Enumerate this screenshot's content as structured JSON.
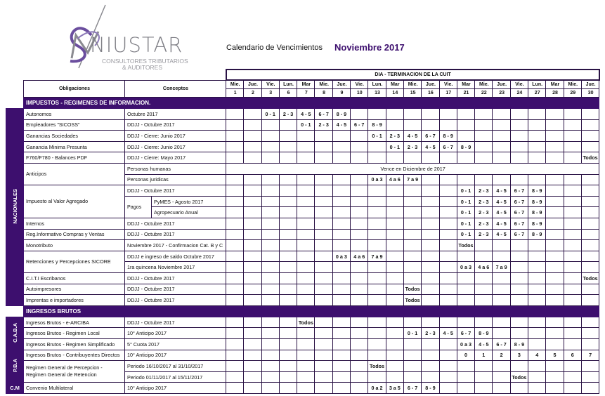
{
  "header": {
    "logo_text": "NIUSTAR",
    "logo_sub1": "CONSULTORES TRIBUTARIOS",
    "logo_sub2": "& AUDITORES",
    "calendar_label": "Calendario de Vencimientos",
    "month": "Noviembre 2017",
    "accent_color": "#3d0f6e"
  },
  "table": {
    "col_obligaciones": "Obligaciones",
    "col_conceptos": "Conceptos",
    "dia_header": "DIA - TERMINACION DE LA CUIT",
    "days": [
      {
        "dow": "Mie.",
        "num": "1"
      },
      {
        "dow": "Jue.",
        "num": "2"
      },
      {
        "dow": "Vie.",
        "num": "3"
      },
      {
        "dow": "Lun.",
        "num": "6"
      },
      {
        "dow": "Mar",
        "num": "7"
      },
      {
        "dow": "Mie.",
        "num": "8"
      },
      {
        "dow": "Jue.",
        "num": "9"
      },
      {
        "dow": "Vie.",
        "num": "10"
      },
      {
        "dow": "Lun.",
        "num": "13"
      },
      {
        "dow": "Mar",
        "num": "14"
      },
      {
        "dow": "Mie.",
        "num": "15"
      },
      {
        "dow": "Jue.",
        "num": "16"
      },
      {
        "dow": "Vie.",
        "num": "17"
      },
      {
        "dow": "Mar",
        "num": "21"
      },
      {
        "dow": "Mie.",
        "num": "22"
      },
      {
        "dow": "Jue.",
        "num": "23"
      },
      {
        "dow": "Vie.",
        "num": "24"
      },
      {
        "dow": "Lun.",
        "num": "27"
      },
      {
        "dow": "Mar",
        "num": "28"
      },
      {
        "dow": "Mie.",
        "num": "29"
      },
      {
        "dow": "Jue.",
        "num": "30"
      }
    ],
    "sections": [
      {
        "title": "IMPUESTOS - REGIMENES DE INFORMACION.",
        "groups": [
          {
            "side": "NACIONALES",
            "items": [
              {
                "obligacion": "Autonomos",
                "rows": [
                  {
                    "concepto": "Octubre 2017",
                    "cells": {
                      "3": "0 - 1",
                      "6": "2 - 3",
                      "7": "4 - 5",
                      "8": "6 - 7",
                      "9": "8 - 9"
                    }
                  }
                ]
              },
              {
                "obligacion": "Empleadores \"SICOSS\"",
                "rows": [
                  {
                    "concepto": "DDJJ - Octubre 2017",
                    "cells": {
                      "7": "0 - 1",
                      "8": "2 - 3",
                      "9": "4 - 5",
                      "10": "6 - 7",
                      "13": "8 - 9"
                    }
                  }
                ]
              },
              {
                "obligacion": "Ganancias Sociedades",
                "rows": [
                  {
                    "concepto": "DDJJ - Cierre: Junio 2017",
                    "cells": {
                      "13": "0 - 1",
                      "14": "2 - 3",
                      "15": "4 - 5",
                      "16": "6 - 7",
                      "17": "8 - 9"
                    }
                  }
                ]
              },
              {
                "obligacion": "Ganancia Minima Presunta",
                "rows": [
                  {
                    "concepto": "DDJJ - Cierre: Junio 2017",
                    "cells": {
                      "14": "0 - 1",
                      "15": "2 - 3",
                      "16": "4 - 5",
                      "17": "6 - 7",
                      "21": "8 - 9"
                    }
                  }
                ]
              },
              {
                "obligacion": "F760/F780 - Balances PDF",
                "rows": [
                  {
                    "concepto": "DDJJ - Cierre: Mayo 2017",
                    "cells": {
                      "30": "Todos"
                    }
                  }
                ]
              },
              {
                "obligacion": "Anticipos",
                "rows": [
                  {
                    "concepto": "Personas humanas",
                    "note": "Vence en Diciembre de 2017"
                  },
                  {
                    "concepto": "Personas juridicas",
                    "cells": {
                      "13": "0 a 3",
                      "14": "4 a 6",
                      "15": "7 a 9"
                    }
                  }
                ]
              },
              {
                "obligacion": "Impuesto al Valor Agregado",
                "sublabel": "Pagos",
                "rows": [
                  {
                    "concepto": "DDJJ - Octubre 2017",
                    "cells": {
                      "21": "0 - 1",
                      "22": "2 - 3",
                      "23": "4 - 5",
                      "24": "6 - 7",
                      "27": "8 - 9"
                    }
                  },
                  {
                    "concepto": "PyMES - Agosto 2017",
                    "sub": true,
                    "cells": {
                      "21": "0 - 1",
                      "22": "2 - 3",
                      "23": "4 - 5",
                      "24": "6 - 7",
                      "27": "8 - 9"
                    }
                  },
                  {
                    "concepto": "Agropecuario Anual",
                    "sub": true,
                    "cells": {
                      "21": "0 - 1",
                      "22": "2 - 3",
                      "23": "4 - 5",
                      "24": "6 - 7",
                      "27": "8 - 9"
                    }
                  }
                ]
              },
              {
                "obligacion": "Internos",
                "rows": [
                  {
                    "concepto": "DDJJ - Octubre 2017",
                    "cells": {
                      "21": "0 - 1",
                      "22": "2 - 3",
                      "23": "4 - 5",
                      "24": "6 - 7",
                      "27": "8 - 9"
                    }
                  }
                ]
              },
              {
                "obligacion": "Reg.Informativo Compras y Ventas",
                "rows": [
                  {
                    "concepto": "DDJJ - Octubre 2017",
                    "cells": {
                      "21": "0 - 1",
                      "22": "2 - 3",
                      "23": "4 - 5",
                      "24": "6 - 7",
                      "27": "8 - 9"
                    }
                  }
                ]
              },
              {
                "obligacion": "Monotributo",
                "rows": [
                  {
                    "concepto": "Noviembre 2017 - Confirmacion Cat. B y C",
                    "cells": {
                      "21": "Todos"
                    }
                  }
                ]
              },
              {
                "obligacion": "Retenciones y Percepciones      SICORE",
                "rows": [
                  {
                    "concepto": "DDJJ e ingreso de saldo Octubre 2017",
                    "cells": {
                      "9": "0 a 3",
                      "10": "4 a 6",
                      "13": "7 a 9"
                    }
                  },
                  {
                    "concepto": "1ra quincena Noviembre 2017",
                    "cells": {
                      "21": "0 a 3",
                      "22": "4 a 6",
                      "23": "7 a 9"
                    }
                  }
                ]
              },
              {
                "obligacion": "C.I.T.I Escribanos",
                "rows": [
                  {
                    "concepto": "DDJJ - Octubre 2017",
                    "cells": {
                      "30": "Todos"
                    }
                  }
                ]
              },
              {
                "obligacion": "Autoimpresores",
                "rows": [
                  {
                    "concepto": "DDJJ - Octubre 2017",
                    "cells": {
                      "15": "Todos"
                    }
                  }
                ]
              },
              {
                "obligacion": "Imprentas e importadores",
                "rows": [
                  {
                    "concepto": "DDJJ - Octubre 2017",
                    "cells": {
                      "15": "Todos"
                    }
                  }
                ]
              }
            ]
          }
        ]
      },
      {
        "title": "INGRESOS BRUTOS",
        "groups": [
          {
            "side": "C.A.B.A",
            "items": [
              {
                "obligacion": "Ingresos Brutos - e-ARCIBA",
                "rows": [
                  {
                    "concepto": "DDJJ - Octubre 2017",
                    "cells": {
                      "7": "Todos"
                    }
                  }
                ]
              },
              {
                "obligacion": "Ingresos Brutos - Regimen Local",
                "rows": [
                  {
                    "concepto": "10° Anticipo 2017",
                    "cells": {
                      "15": "0 - 1",
                      "16": "2 - 3",
                      "17": "4 - 5",
                      "21": "6 - 7",
                      "22": "8 - 9"
                    }
                  }
                ]
              },
              {
                "obligacion": "Ingresos Brutos - Regimen Simplificado",
                "rows": [
                  {
                    "concepto": "5° Cuota 2017",
                    "cells": {
                      "21": "0 a 3",
                      "22": "4 - 5",
                      "23": "6 - 7",
                      "24": "8 - 9"
                    }
                  }
                ]
              }
            ]
          },
          {
            "side": "P.B.A",
            "items": [
              {
                "obligacion": "Ingresos Brutos - Contribuyentes Directos",
                "rows": [
                  {
                    "concepto": "10° Anticipo 2017",
                    "cells": {
                      "21": "0",
                      "22": "1",
                      "23": "2",
                      "24": "3",
                      "27": "4",
                      "28": "5",
                      "29": "6",
                      "30": "7"
                    }
                  }
                ]
              },
              {
                "obligacion": "Regimen General de Percepcion - Regimen General de Retencion",
                "rows": [
                  {
                    "concepto": "Periodo 16/10/2017 al 31/10/2017",
                    "cells": {
                      "13": "Todos"
                    }
                  },
                  {
                    "concepto": "Periodo 01/11/2017 al 15/11/2017",
                    "cells": {
                      "24": "Todos"
                    }
                  }
                ]
              }
            ]
          },
          {
            "side": "C.M",
            "horizontal": true,
            "items": [
              {
                "obligacion": "Convenio Multilateral",
                "rows": [
                  {
                    "concepto": "10° Anticipo 2017",
                    "cells": {
                      "13": "0 a 2",
                      "14": "3 a 5",
                      "15": "6 - 7",
                      "16": "8 - 9"
                    }
                  }
                ]
              }
            ]
          }
        ]
      }
    ]
  }
}
